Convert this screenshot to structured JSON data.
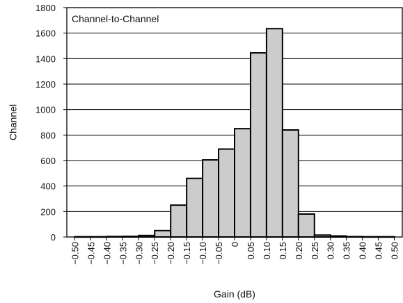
{
  "chart_data": {
    "type": "bar",
    "title": "",
    "legend_label": "Channel-to-Channel",
    "legend_placement": "top-left",
    "xlabel": "Gain (dB)",
    "ylabel": "Channel",
    "ylim": [
      0,
      1800
    ],
    "y_ticks": [
      "0",
      "200",
      "400",
      "600",
      "800",
      "1000",
      "1200",
      "1400",
      "1600",
      "1800"
    ],
    "x_tick_labels": [
      "−0.50",
      "−0.45",
      "−0.40",
      "−0.35",
      "−0.30",
      "−0.25",
      "−0.20",
      "−0.15",
      "−0.10",
      "−0.05",
      "0",
      "0.05",
      "0.10",
      "0.15",
      "0.20",
      "0.25",
      "0.30",
      "0.35",
      "0.40",
      "0.45",
      "0.50"
    ],
    "x_ticks": [
      -0.5,
      -0.45,
      -0.4,
      -0.35,
      -0.3,
      -0.25,
      -0.2,
      -0.15,
      -0.1,
      -0.05,
      0,
      0.05,
      0.1,
      0.15,
      0.2,
      0.25,
      0.3,
      0.35,
      0.4,
      0.45,
      0.5
    ],
    "xlim": [
      -0.525,
      0.525
    ],
    "bin_width": 0.05,
    "grid": "horizontal",
    "bars": [
      {
        "x": -0.475,
        "value": 2
      },
      {
        "x": -0.425,
        "value": 2
      },
      {
        "x": -0.375,
        "value": 4
      },
      {
        "x": -0.325,
        "value": 5
      },
      {
        "x": -0.275,
        "value": 12
      },
      {
        "x": -0.225,
        "value": 50
      },
      {
        "x": -0.175,
        "value": 250
      },
      {
        "x": -0.125,
        "value": 460
      },
      {
        "x": -0.075,
        "value": 605
      },
      {
        "x": -0.025,
        "value": 690
      },
      {
        "x": 0.025,
        "value": 850
      },
      {
        "x": 0.075,
        "value": 1445
      },
      {
        "x": 0.125,
        "value": 1635
      },
      {
        "x": 0.175,
        "value": 840
      },
      {
        "x": 0.225,
        "value": 180
      },
      {
        "x": 0.275,
        "value": 15
      },
      {
        "x": 0.325,
        "value": 8
      },
      {
        "x": 0.375,
        "value": 3
      },
      {
        "x": 0.425,
        "value": 2
      },
      {
        "x": 0.475,
        "value": 2
      }
    ],
    "colors": {
      "bar_fill": "#cccccc",
      "bar_stroke": "#000000",
      "grid": "#000000"
    }
  }
}
